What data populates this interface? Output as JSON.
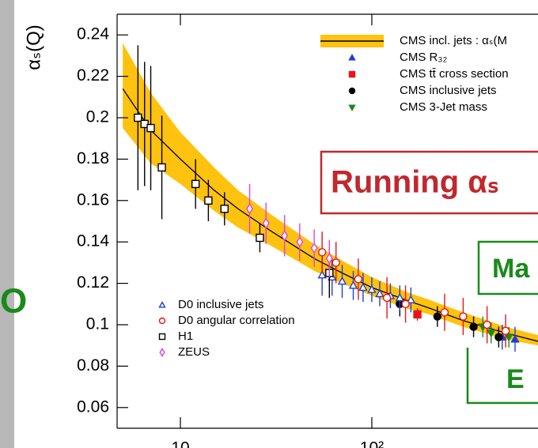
{
  "chart_data": {
    "type": "scatter",
    "ylabel": "αₛ(Q)",
    "xlog": true,
    "xlim": [
      4.67,
      738
    ],
    "ylim": [
      0.05,
      0.25
    ],
    "xticks": [
      10,
      {
        "value": 100,
        "label": "10²"
      }
    ],
    "yticks": [
      0.06,
      0.08,
      0.1,
      0.12,
      0.14,
      0.16,
      0.18,
      0.2,
      0.22,
      0.24
    ],
    "band": {
      "name": "CMS incl. jets :  αₛ(M",
      "color": "#ffc20e",
      "line_color": "#000000",
      "x": [
        5,
        7,
        10,
        15,
        20,
        30,
        50,
        70,
        100,
        150,
        200,
        300,
        500,
        738
      ],
      "values": [
        0.214,
        0.194,
        0.18,
        0.165,
        0.156,
        0.145,
        0.132,
        0.125,
        0.118,
        0.112,
        0.108,
        0.102,
        0.096,
        0.092
      ],
      "lower": [
        0.195,
        0.178,
        0.168,
        0.155,
        0.147,
        0.138,
        0.126,
        0.12,
        0.114,
        0.108,
        0.105,
        0.099,
        0.093,
        0.09
      ],
      "upper": [
        0.236,
        0.212,
        0.193,
        0.176,
        0.165,
        0.153,
        0.139,
        0.131,
        0.123,
        0.116,
        0.112,
        0.106,
        0.099,
        0.095
      ]
    },
    "series": [
      {
        "name": "CMS R₃₂",
        "color": "#1f3fd1",
        "marker": "triangle-up",
        "filled": true,
        "legend": "top",
        "x": [
          480,
          560
        ],
        "values": [
          0.094,
          0.093
        ],
        "errors": [
          0.006,
          0.006
        ]
      },
      {
        "name": "CMS tt̄ cross section",
        "color": "#e8141c",
        "marker": "square",
        "filled": true,
        "legend": "top",
        "x": [
          173
        ],
        "values": [
          0.105
        ],
        "errors": [
          0.003
        ]
      },
      {
        "name": "CMS inclusive jets",
        "color": "#000000",
        "marker": "circle",
        "filled": true,
        "legend": "top",
        "x": [
          140,
          220,
          340,
          460
        ],
        "values": [
          0.11,
          0.104,
          0.099,
          0.094
        ],
        "errors": [
          0.006,
          0.005,
          0.005,
          0.005
        ]
      },
      {
        "name": "CMS 3-Jet mass",
        "color": "#1a8a1a",
        "marker": "triangle-down",
        "filled": true,
        "legend": "top",
        "x": [
          380,
          420,
          520
        ],
        "values": [
          0.099,
          0.096,
          0.094
        ],
        "errors": [
          0.005,
          0.005,
          0.005
        ]
      },
      {
        "name": "D0 inclusive jets",
        "color": "#1f3fd1",
        "marker": "triangle-up",
        "filled": false,
        "legend": "bottom",
        "x": [
          55,
          62,
          70,
          80,
          90,
          100,
          110,
          125,
          140,
          160
        ],
        "values": [
          0.124,
          0.123,
          0.121,
          0.119,
          0.118,
          0.117,
          0.115,
          0.114,
          0.113,
          0.112
        ],
        "errors": [
          0.01,
          0.009,
          0.008,
          0.007,
          0.007,
          0.006,
          0.006,
          0.006,
          0.006,
          0.006
        ]
      },
      {
        "name": "D0 angular correlation",
        "color": "#e8141c",
        "marker": "circle",
        "filled": false,
        "legend": "bottom",
        "x": [
          55,
          65,
          85,
          120,
          150,
          240,
          300,
          400,
          500
        ],
        "values": [
          0.135,
          0.13,
          0.122,
          0.113,
          0.11,
          0.106,
          0.104,
          0.1,
          0.097
        ],
        "errors": [
          0.01,
          0.01,
          0.01,
          0.01,
          0.009,
          0.009,
          0.009,
          0.009,
          0.008
        ]
      },
      {
        "name": "H1",
        "color": "#000000",
        "marker": "square",
        "filled": false,
        "legend": "bottom",
        "x": [
          6,
          6.5,
          7,
          8,
          12,
          14,
          17,
          26,
          60
        ],
        "values": [
          0.2,
          0.197,
          0.195,
          0.176,
          0.168,
          0.16,
          0.156,
          0.142,
          0.125
        ],
        "errors": [
          0.035,
          0.03,
          0.03,
          0.025,
          0.012,
          0.01,
          0.008,
          0.007,
          0.012
        ]
      },
      {
        "name": "ZEUS",
        "color": "#e040e0",
        "marker": "diamond",
        "filled": false,
        "legend": "bottom",
        "x": [
          23,
          28,
          35,
          42,
          50,
          60
        ],
        "values": [
          0.156,
          0.149,
          0.143,
          0.14,
          0.137,
          0.132
        ],
        "errors": [
          0.012,
          0.01,
          0.01,
          0.009,
          0.009,
          0.009
        ]
      }
    ],
    "annotations": [
      {
        "text": "Running αₛ",
        "color": "#c0282d"
      },
      {
        "text": "Ma",
        "color": "#1a8a1a"
      },
      {
        "text": "E",
        "color": "#1a8a1a"
      },
      {
        "text": "O",
        "color": "#1a8a1a"
      }
    ]
  }
}
